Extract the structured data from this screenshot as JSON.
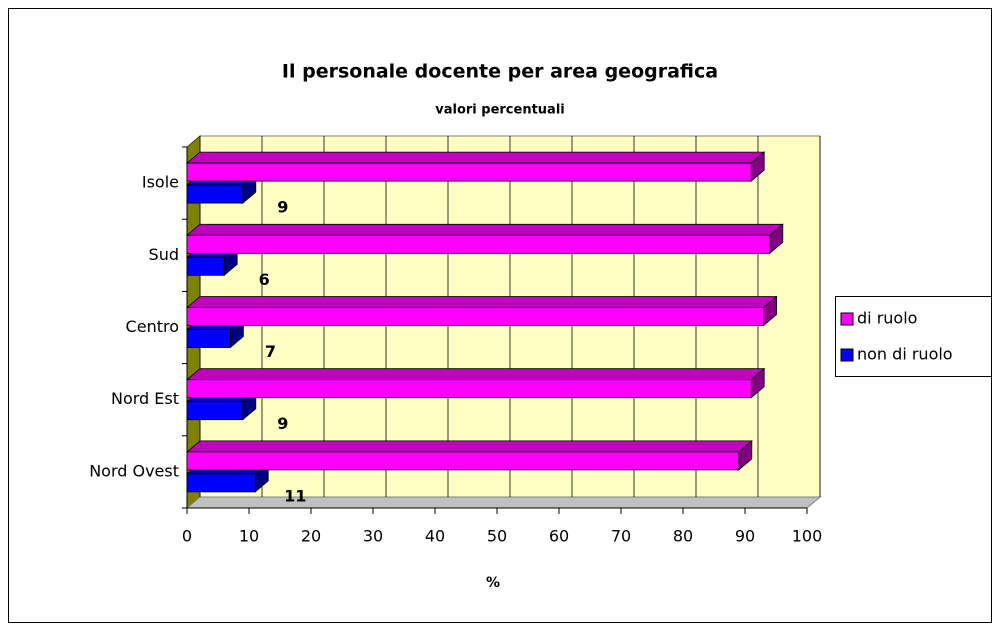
{
  "chart_data": {
    "type": "bar3d_horizontal",
    "title": "Il personale docente per area geografica",
    "subtitle": "valori percentuali",
    "xlabel": "%",
    "categories": [
      "Nord Ovest",
      "Nord Est",
      "Centro",
      "Sud",
      "Isole"
    ],
    "series": [
      {
        "name": "di ruolo",
        "color": "#ff00ff",
        "values": [
          89,
          91,
          93,
          94,
          91
        ]
      },
      {
        "name": "non di ruolo",
        "color": "#0000ff",
        "values": [
          11,
          9,
          7,
          6,
          9
        ],
        "show_labels": true
      }
    ],
    "xlim": [
      0,
      100
    ],
    "xticks": [
      0,
      10,
      20,
      30,
      40,
      50,
      60,
      70,
      80,
      90,
      100
    ],
    "grid": true,
    "legend": "right"
  }
}
